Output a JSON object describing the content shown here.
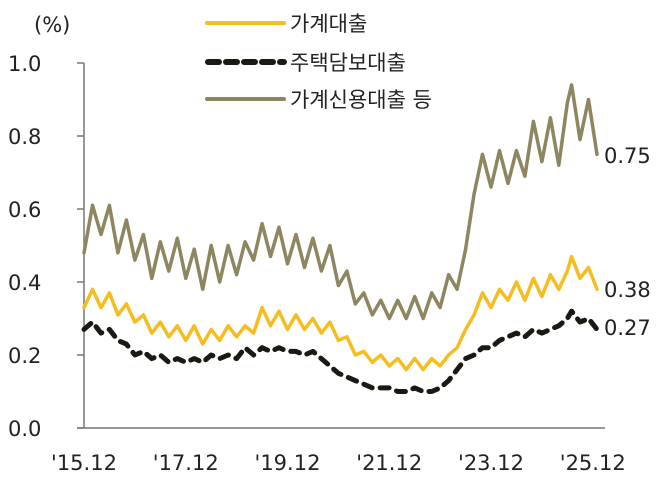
{
  "chart_data": {
    "type": "line",
    "title": "",
    "ylabel": "(%)",
    "xlabel": "",
    "ylim": [
      0.0,
      1.0
    ],
    "yticks": [
      0.0,
      0.2,
      0.4,
      0.6,
      0.8,
      1.0
    ],
    "ytick_labels": [
      "0.0",
      "0.2",
      "0.4",
      "0.6",
      "0.8",
      "1.0"
    ],
    "xtick_labels": [
      "'15.12",
      "'17.12",
      "'19.12",
      "'21.12",
      "'23.12",
      "'25.12"
    ],
    "grid": false,
    "legend_position": "top",
    "x_frequency": "monthly",
    "x_start": "2015.12",
    "x_end": "2025.12",
    "series": [
      {
        "name": "가계대출",
        "color": "#f5bd1f",
        "style": "solid",
        "end_label": "0.38",
        "anchors": [
          [
            0,
            0.33
          ],
          [
            2,
            0.38
          ],
          [
            4,
            0.33
          ],
          [
            6,
            0.37
          ],
          [
            8,
            0.31
          ],
          [
            10,
            0.34
          ],
          [
            12,
            0.29
          ],
          [
            14,
            0.31
          ],
          [
            16,
            0.26
          ],
          [
            18,
            0.29
          ],
          [
            20,
            0.25
          ],
          [
            22,
            0.28
          ],
          [
            24,
            0.24
          ],
          [
            26,
            0.28
          ],
          [
            28,
            0.23
          ],
          [
            30,
            0.27
          ],
          [
            32,
            0.24
          ],
          [
            34,
            0.28
          ],
          [
            36,
            0.25
          ],
          [
            38,
            0.28
          ],
          [
            40,
            0.26
          ],
          [
            42,
            0.33
          ],
          [
            44,
            0.28
          ],
          [
            46,
            0.32
          ],
          [
            48,
            0.27
          ],
          [
            50,
            0.31
          ],
          [
            52,
            0.27
          ],
          [
            54,
            0.3
          ],
          [
            56,
            0.26
          ],
          [
            58,
            0.29
          ],
          [
            60,
            0.24
          ],
          [
            62,
            0.25
          ],
          [
            64,
            0.2
          ],
          [
            66,
            0.21
          ],
          [
            68,
            0.18
          ],
          [
            70,
            0.2
          ],
          [
            72,
            0.17
          ],
          [
            74,
            0.19
          ],
          [
            76,
            0.16
          ],
          [
            78,
            0.19
          ],
          [
            80,
            0.16
          ],
          [
            82,
            0.19
          ],
          [
            84,
            0.17
          ],
          [
            86,
            0.2
          ],
          [
            88,
            0.22
          ],
          [
            90,
            0.27
          ],
          [
            92,
            0.31
          ],
          [
            94,
            0.37
          ],
          [
            96,
            0.33
          ],
          [
            98,
            0.38
          ],
          [
            100,
            0.35
          ],
          [
            102,
            0.4
          ],
          [
            104,
            0.35
          ],
          [
            106,
            0.41
          ],
          [
            108,
            0.36
          ],
          [
            110,
            0.42
          ],
          [
            112,
            0.38
          ],
          [
            114,
            0.43
          ],
          [
            115,
            0.47
          ],
          [
            117,
            0.41
          ],
          [
            119,
            0.44
          ],
          [
            121,
            0.38
          ]
        ]
      },
      {
        "name": "주택담보대출",
        "color": "#1a1a14",
        "style": "dashed",
        "end_label": "0.27",
        "anchors": [
          [
            0,
            0.27
          ],
          [
            2,
            0.29
          ],
          [
            4,
            0.26
          ],
          [
            6,
            0.27
          ],
          [
            8,
            0.24
          ],
          [
            10,
            0.23
          ],
          [
            12,
            0.2
          ],
          [
            14,
            0.21
          ],
          [
            16,
            0.19
          ],
          [
            18,
            0.2
          ],
          [
            20,
            0.18
          ],
          [
            22,
            0.19
          ],
          [
            24,
            0.18
          ],
          [
            26,
            0.19
          ],
          [
            28,
            0.18
          ],
          [
            30,
            0.2
          ],
          [
            32,
            0.19
          ],
          [
            34,
            0.2
          ],
          [
            36,
            0.19
          ],
          [
            38,
            0.22
          ],
          [
            40,
            0.2
          ],
          [
            42,
            0.22
          ],
          [
            44,
            0.21
          ],
          [
            46,
            0.22
          ],
          [
            48,
            0.21
          ],
          [
            50,
            0.21
          ],
          [
            52,
            0.2
          ],
          [
            54,
            0.21
          ],
          [
            56,
            0.19
          ],
          [
            58,
            0.17
          ],
          [
            60,
            0.15
          ],
          [
            62,
            0.14
          ],
          [
            64,
            0.13
          ],
          [
            66,
            0.12
          ],
          [
            68,
            0.11
          ],
          [
            70,
            0.11
          ],
          [
            72,
            0.11
          ],
          [
            74,
            0.1
          ],
          [
            76,
            0.1
          ],
          [
            78,
            0.11
          ],
          [
            80,
            0.1
          ],
          [
            82,
            0.1
          ],
          [
            84,
            0.11
          ],
          [
            86,
            0.13
          ],
          [
            88,
            0.16
          ],
          [
            90,
            0.19
          ],
          [
            92,
            0.2
          ],
          [
            94,
            0.22
          ],
          [
            96,
            0.22
          ],
          [
            98,
            0.24
          ],
          [
            100,
            0.25
          ],
          [
            102,
            0.26
          ],
          [
            104,
            0.25
          ],
          [
            106,
            0.27
          ],
          [
            108,
            0.26
          ],
          [
            110,
            0.27
          ],
          [
            112,
            0.28
          ],
          [
            114,
            0.3
          ],
          [
            115,
            0.32
          ],
          [
            117,
            0.29
          ],
          [
            119,
            0.3
          ],
          [
            121,
            0.27
          ]
        ]
      },
      {
        "name": "가계신용대출 등",
        "color": "#8e8660",
        "style": "solid",
        "end_label": "0.75",
        "anchors": [
          [
            0,
            0.48
          ],
          [
            2,
            0.61
          ],
          [
            4,
            0.53
          ],
          [
            6,
            0.61
          ],
          [
            8,
            0.48
          ],
          [
            10,
            0.57
          ],
          [
            12,
            0.46
          ],
          [
            14,
            0.53
          ],
          [
            16,
            0.41
          ],
          [
            18,
            0.51
          ],
          [
            20,
            0.43
          ],
          [
            22,
            0.52
          ],
          [
            24,
            0.41
          ],
          [
            26,
            0.49
          ],
          [
            28,
            0.38
          ],
          [
            30,
            0.5
          ],
          [
            32,
            0.4
          ],
          [
            34,
            0.5
          ],
          [
            36,
            0.42
          ],
          [
            38,
            0.51
          ],
          [
            40,
            0.46
          ],
          [
            42,
            0.56
          ],
          [
            44,
            0.47
          ],
          [
            46,
            0.55
          ],
          [
            48,
            0.45
          ],
          [
            50,
            0.53
          ],
          [
            52,
            0.44
          ],
          [
            54,
            0.52
          ],
          [
            56,
            0.43
          ],
          [
            58,
            0.5
          ],
          [
            60,
            0.39
          ],
          [
            62,
            0.43
          ],
          [
            64,
            0.34
          ],
          [
            66,
            0.37
          ],
          [
            68,
            0.31
          ],
          [
            70,
            0.35
          ],
          [
            72,
            0.3
          ],
          [
            74,
            0.35
          ],
          [
            76,
            0.3
          ],
          [
            78,
            0.36
          ],
          [
            80,
            0.3
          ],
          [
            82,
            0.37
          ],
          [
            84,
            0.33
          ],
          [
            86,
            0.42
          ],
          [
            88,
            0.38
          ],
          [
            90,
            0.49
          ],
          [
            92,
            0.64
          ],
          [
            94,
            0.75
          ],
          [
            96,
            0.66
          ],
          [
            98,
            0.76
          ],
          [
            100,
            0.67
          ],
          [
            102,
            0.76
          ],
          [
            104,
            0.69
          ],
          [
            106,
            0.84
          ],
          [
            108,
            0.73
          ],
          [
            110,
            0.85
          ],
          [
            112,
            0.72
          ],
          [
            114,
            0.89
          ],
          [
            115,
            0.94
          ],
          [
            117,
            0.79
          ],
          [
            119,
            0.9
          ],
          [
            121,
            0.75
          ]
        ]
      }
    ]
  },
  "legend": {
    "items": [
      {
        "label": "가계대출"
      },
      {
        "label": "주택담보대출"
      },
      {
        "label": "가계신용대출 등"
      }
    ]
  },
  "axis": {
    "unit": "(%)"
  }
}
